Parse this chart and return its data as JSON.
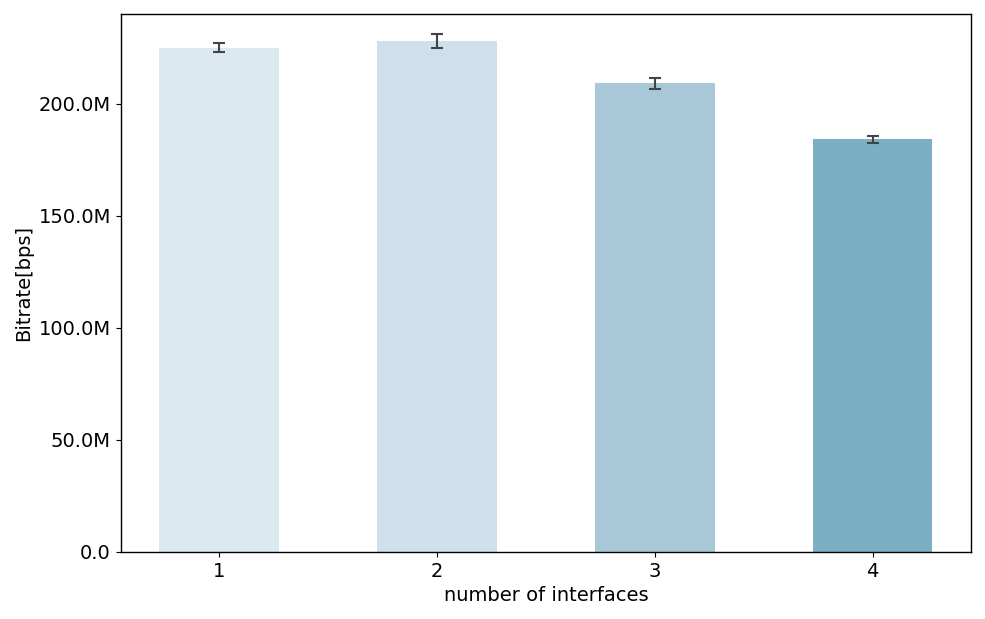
{
  "categories": [
    1,
    2,
    3,
    4
  ],
  "values": [
    225000000,
    228000000,
    209000000,
    184000000
  ],
  "errors": [
    2000000,
    3000000,
    2500000,
    1500000
  ],
  "bar_colors": [
    "#dce9f0",
    "#cde0ec",
    "#a8c8d8",
    "#7aafc4"
  ],
  "xlabel": "number of interfaces",
  "ylabel": "Bitrate[bps]",
  "ylim": [
    0,
    240000000
  ],
  "ytick_values": [
    0,
    50000000,
    100000000,
    150000000,
    200000000
  ],
  "error_color": "#444444",
  "figsize": [
    9.85,
    6.19
  ],
  "dpi": 100,
  "style": "seaborn-v0_8-white",
  "bar_width": 0.55,
  "xlabel_fontsize": 14,
  "ylabel_fontsize": 14,
  "tick_fontsize": 14
}
